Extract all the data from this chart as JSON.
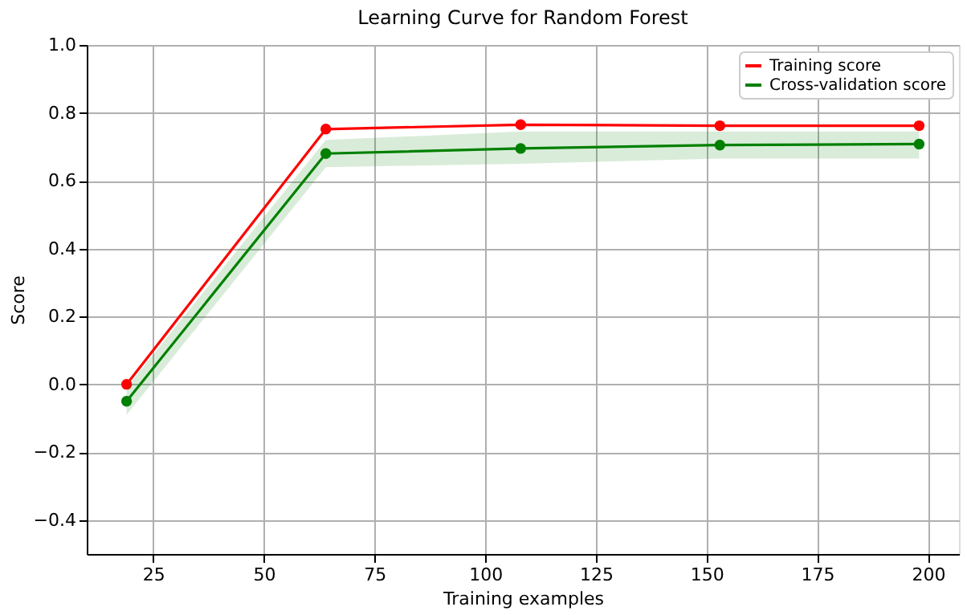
{
  "chart_data": {
    "type": "line",
    "title": "Learning Curve for Random Forest",
    "xlabel": "Training examples",
    "ylabel": "Score",
    "x": [
      19,
      64,
      108,
      153,
      198
    ],
    "series": [
      {
        "name": "Training score",
        "color": "#ff0000",
        "values": [
          0.0,
          0.752,
          0.765,
          0.762,
          0.762
        ]
      },
      {
        "name": "Cross-validation score",
        "color": "#008000",
        "values": [
          -0.05,
          0.68,
          0.695,
          0.705,
          0.708
        ],
        "lower": [
          -0.09,
          0.64,
          0.65,
          0.665,
          0.665
        ],
        "upper": [
          -0.01,
          0.72,
          0.745,
          0.745,
          0.745
        ]
      }
    ],
    "xlim": [
      10,
      207
    ],
    "xticks": [
      25,
      50,
      75,
      100,
      125,
      150,
      175,
      200
    ],
    "ylim": [
      -0.5,
      1.0
    ],
    "yticks": [
      {
        "value": -0.4,
        "label": "−0.4"
      },
      {
        "value": -0.2,
        "label": "−0.2"
      },
      {
        "value": 0.0,
        "label": "0.0"
      },
      {
        "value": 0.2,
        "label": "0.2"
      },
      {
        "value": 0.4,
        "label": "0.4"
      },
      {
        "value": 0.6,
        "label": "0.6"
      },
      {
        "value": 0.8,
        "label": "0.8"
      },
      {
        "value": 1.0,
        "label": "1.0"
      }
    ],
    "grid": true,
    "legend": "top right",
    "marker": "circle",
    "line_style": "solid"
  }
}
